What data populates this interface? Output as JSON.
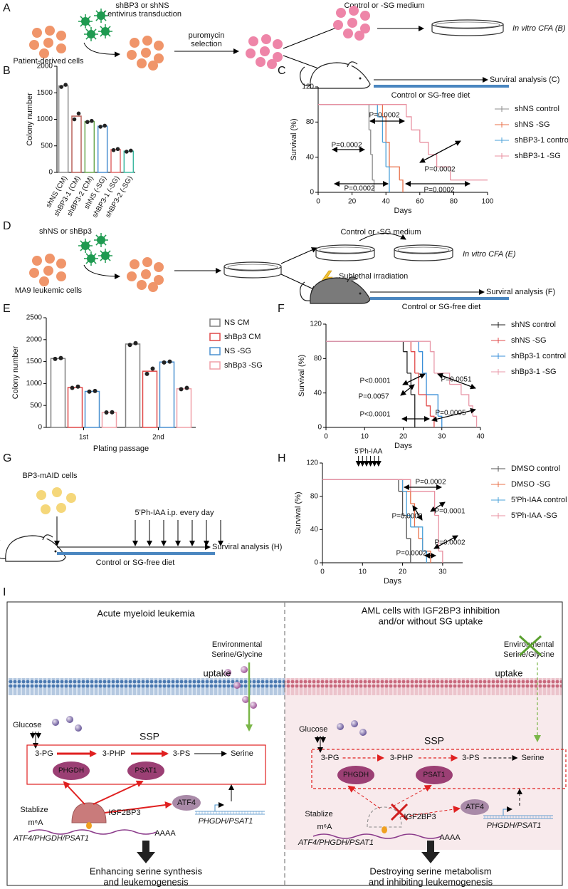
{
  "panel_labels": {
    "a": "A",
    "b": "B",
    "c": "C",
    "d": "D",
    "e": "E",
    "f": "F",
    "g": "G",
    "h": "H",
    "i": "I"
  },
  "panel_a": {
    "virus_label": [
      "shBP3 or shNS",
      "Lentivirus transduction"
    ],
    "cells": "Patient-derived cells",
    "selection": [
      "puromycin",
      "selection"
    ],
    "medium": "Control or -SG medium",
    "cfa": "In vitro CFA (B)",
    "survival": "Surviral analysis (C)",
    "diet": "Control or SG-free diet"
  },
  "panel_d": {
    "virus_label": "shNS or shBp3",
    "cells": "MA9 leukemic cells",
    "medium": "Control or -SG medium",
    "cfa": "In vitro CFA (E)",
    "irradiation": "Sublethal irradiation",
    "survival": "Surviral analysis (F)",
    "diet": "Control or SG-free diet"
  },
  "panel_g": {
    "cells": "BP3-mAID cells",
    "treatment": "5'Ph-IAA i.p. every day",
    "survival": "Surviral analysis (H)",
    "diet": "Control or SG-free diet"
  },
  "panel_i": {
    "left": {
      "title": [
        "Acute myeloid leukemia"
      ],
      "environment": [
        "Environmental",
        "Serine/Glycine"
      ],
      "uptake": "uptake",
      "glucose": "Glucose",
      "ssp": "SSP",
      "metabolites": [
        "3-PG",
        "3-PHP",
        "3-PS",
        "Serine"
      ],
      "enzymes": [
        "PHGDH",
        "PSAT1"
      ],
      "stabilize": "Stablize",
      "m6a": "m⁶A",
      "reader": "IGF2BP3",
      "tf": "ATF4",
      "genes": "PHGDH/PSAT1",
      "mrna": "ATF4/PHGDH/PSAT1",
      "polya": "AAAA",
      "outcome": [
        "Enhancing serine synthesis",
        "and leukemogenesis"
      ]
    },
    "right": {
      "title": [
        "AML cells with IGF2BP3 inhibition",
        "and/or without SG uptake"
      ],
      "environment": [
        "Environmental",
        "Serine/Glycine"
      ],
      "uptake": "uptake",
      "glucose": "Glucose",
      "ssp": "SSP",
      "metabolites": [
        "3-PG",
        "3-PHP",
        "3-PS",
        "Serine"
      ],
      "enzymes": [
        "PHGDH",
        "PSAT1"
      ],
      "stabilize": "Stablize",
      "m6a": "m⁶A",
      "reader": "IGF2BP3",
      "tf": "ATF4",
      "genes": "PHGDH/PSAT1",
      "mrna": "ATF4/PHGDH/PSAT1",
      "polya": "AAAA",
      "outcome": [
        "Destroying serine metabolism",
        "and inhibiting leukemogenesis"
      ]
    }
  },
  "chart_data": [
    {
      "type": "bar",
      "ylabel": "Colony number",
      "categories": [
        "shNS (CM)",
        "shBP3-1 (CM)",
        "shBP3-2 (CM)",
        "shNS (-SG)",
        "shBP3-1 (-SG)",
        "shBP3-2 (-SG)"
      ],
      "values": [
        1630,
        1060,
        960,
        870,
        430,
        400
      ],
      "points": [
        [
          1610,
          1650
        ],
        [
          1000,
          1110
        ],
        [
          950,
          970
        ],
        [
          860,
          880
        ],
        [
          420,
          440
        ],
        [
          390,
          410
        ]
      ],
      "colors": [
        "#8c8c8c",
        "#b8615a",
        "#6aa84f",
        "#4a8fd0",
        "#e06a6a",
        "#3cb8a0"
      ],
      "ylim": [
        0,
        2000
      ],
      "yticks": [
        0,
        500,
        1000,
        1500,
        2000
      ]
    },
    {
      "type": "survival",
      "xlabel": "Days",
      "ylabel": "Survival (%)",
      "xlim": [
        0,
        100
      ],
      "xticks": [
        0,
        20,
        40,
        60,
        80,
        100
      ],
      "ylim": [
        0,
        120
      ],
      "yticks": [
        0,
        40,
        80,
        120
      ],
      "legend": "right",
      "series": [
        {
          "name": "shNS control",
          "color": "#8c8c8c",
          "x": [
            0,
            30,
            31,
            32,
            33
          ],
          "values": [
            100,
            71,
            43,
            14,
            0
          ]
        },
        {
          "name": "shNS -SG",
          "color": "#e8704a",
          "x": [
            0,
            38,
            40,
            42,
            48,
            50
          ],
          "values": [
            100,
            86,
            57,
            29,
            14,
            0
          ]
        },
        {
          "name": "shBP3-1 control",
          "color": "#4aa0d8",
          "x": [
            0,
            35,
            38,
            40,
            42
          ],
          "values": [
            100,
            86,
            57,
            29,
            0
          ]
        },
        {
          "name": "shBP3-1 -SG",
          "color": "#e890a0",
          "x": [
            0,
            52,
            55,
            60,
            65,
            70,
            78,
            100
          ],
          "values": [
            100,
            86,
            71,
            57,
            43,
            29,
            14,
            14
          ]
        }
      ],
      "annotations": [
        "P=0.0002",
        "P=0.0002",
        "P=0.0002",
        "P=0.0002",
        "P=0.0002"
      ]
    },
    {
      "type": "grouped_bar",
      "xlabel": "Plating passage",
      "ylabel": "Colony number",
      "categories": [
        "1st",
        "2nd"
      ],
      "ylim": [
        0,
        2500
      ],
      "yticks": [
        0,
        500,
        1000,
        1500,
        2000,
        2500
      ],
      "legend": "upper right",
      "series": [
        {
          "name": "NS CM",
          "color": "#808080",
          "values": [
            1570,
            1900
          ],
          "points": [
            [
              1560,
              1580
            ],
            [
              1880,
              1920
            ]
          ]
        },
        {
          "name": "shBp3 CM",
          "color": "#e04848",
          "values": [
            910,
            1280
          ],
          "points": [
            [
              900,
              930
            ],
            [
              1220,
              1340
            ]
          ]
        },
        {
          "name": "NS -SG",
          "color": "#4a90d0",
          "values": [
            820,
            1490
          ],
          "points": [
            [
              815,
              830
            ],
            [
              1480,
              1500
            ]
          ]
        },
        {
          "name": "shBp3 -SG",
          "color": "#f0a0a8",
          "values": [
            340,
            880
          ],
          "points": [
            [
              340,
              345
            ],
            [
              870,
              900
            ]
          ]
        }
      ]
    },
    {
      "type": "survival",
      "xlabel": "Days",
      "ylabel": "Survival (%)",
      "xlim": [
        0,
        40
      ],
      "xticks": [
        0,
        10,
        20,
        30,
        40
      ],
      "ylim": [
        0,
        120
      ],
      "yticks": [
        0,
        40,
        80,
        120
      ],
      "legend": "right",
      "series": [
        {
          "name": "shNS control",
          "color": "#222222",
          "x": [
            0,
            20,
            21,
            22,
            23
          ],
          "values": [
            100,
            88,
            63,
            38,
            0
          ]
        },
        {
          "name": "shNS -SG",
          "color": "#e04848",
          "x": [
            0,
            22,
            23,
            24,
            26,
            27,
            28
          ],
          "values": [
            100,
            88,
            63,
            38,
            25,
            13,
            0
          ]
        },
        {
          "name": "shBp3-1 control",
          "color": "#3a8fd8",
          "x": [
            0,
            24,
            25,
            26,
            29,
            30
          ],
          "values": [
            100,
            88,
            63,
            38,
            13,
            0
          ]
        },
        {
          "name": "shBp3-1 -SG",
          "color": "#e898a8",
          "x": [
            0,
            27,
            28,
            32,
            35,
            37,
            38,
            39
          ],
          "values": [
            100,
            88,
            63,
            50,
            38,
            25,
            13,
            0
          ]
        }
      ],
      "annotations": [
        "P<0.0001",
        "P=0.0051",
        "P=0.0057",
        "P<0.0001",
        "P=0.0005"
      ]
    },
    {
      "type": "survival",
      "xlabel": "Days",
      "ylabel": "Survival (%)",
      "xlim": [
        0,
        35
      ],
      "xticks": [
        0,
        10,
        20,
        30
      ],
      "ylim": [
        0,
        120
      ],
      "yticks": [
        0,
        40,
        80,
        120
      ],
      "legend": "right",
      "dosing_label": "5'Ph-IAA",
      "series": [
        {
          "name": "DMSO control",
          "color": "#555555",
          "x": [
            0,
            19,
            20,
            21,
            22
          ],
          "values": [
            100,
            86,
            57,
            29,
            0
          ]
        },
        {
          "name": "DMSO -SG",
          "color": "#e8704a",
          "x": [
            0,
            20,
            22,
            23,
            24,
            25,
            27
          ],
          "values": [
            100,
            86,
            71,
            43,
            29,
            14,
            0
          ]
        },
        {
          "name": "5'Ph-IAA control",
          "color": "#4aa0d8",
          "x": [
            0,
            20,
            21,
            22,
            25,
            26
          ],
          "values": [
            100,
            86,
            57,
            43,
            14,
            0
          ]
        },
        {
          "name": "5'Ph-IAA -SG",
          "color": "#e890a0",
          "x": [
            0,
            22,
            28,
            29,
            30
          ],
          "values": [
            100,
            86,
            57,
            14,
            0
          ]
        }
      ],
      "annotations": [
        "P=0.0002",
        "P=0.0002",
        "P=0.0001",
        "P=0.0002",
        "P=0.0002"
      ]
    }
  ]
}
